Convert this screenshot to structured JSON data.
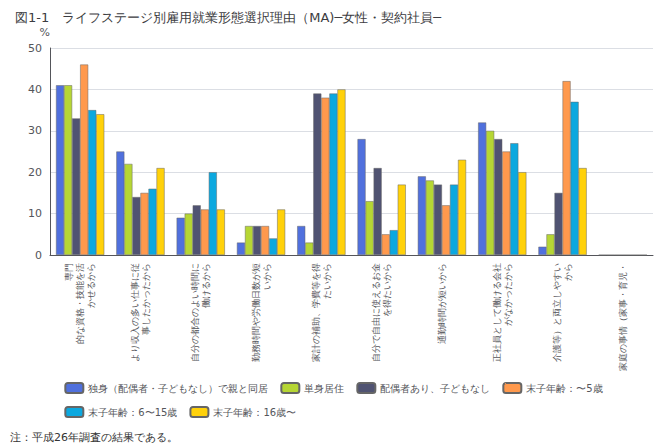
{
  "chart_data": {
    "type": "bar",
    "title": "図1-1　ライフステージ別雇用就業形態選択理由（MA)─女性・契約社員─",
    "ylabel": "%",
    "annotations": [
      "注：平成26年調査の結果である。"
    ],
    "categories": [
      "専門\n的な資格・技能を活\nかせるから",
      "より収入の多い仕事に従\n事したかったから",
      "自分の都合のよい時間に\n働けるから",
      "勤務時間や労働日数が短\nいから",
      "家計の補助、学費等を得\nたいから",
      "自分で自由に使えるお金\nを得たいから",
      "通勤時間が短いから",
      "正社員として働ける会社\nがなかったから",
      "介護等）と両立しやすい\nから",
      "家庭の事情（家事・育児・"
    ],
    "series": [
      {
        "name": "独身（配偶者・子どもなし）で親と同居",
        "values": [
          41,
          25,
          9,
          3,
          7,
          28,
          19,
          32,
          2,
          0
        ]
      },
      {
        "name": "単身居住",
        "values": [
          41,
          22,
          10,
          7,
          3,
          13,
          18,
          30,
          5,
          0
        ]
      },
      {
        "name": "配偶者あり、子どもなし",
        "values": [
          33,
          14,
          12,
          7,
          39,
          21,
          17,
          28,
          15,
          0
        ]
      },
      {
        "name": "末子年齢：〜5歳",
        "values": [
          46,
          15,
          11,
          7,
          38,
          5,
          12,
          25,
          42,
          0
        ]
      },
      {
        "name": "末子年齢：6〜15歳",
        "values": [
          35,
          16,
          20,
          4,
          39,
          6,
          17,
          27,
          37,
          0
        ]
      },
      {
        "name": "末子年齢：16歳〜",
        "values": [
          34,
          21,
          11,
          11,
          40,
          17,
          23,
          20,
          21,
          0
        ]
      }
    ],
    "ylim": [
      0,
      50
    ],
    "yticks": [
      0,
      10,
      20,
      30,
      40,
      50
    ],
    "grid": true,
    "legend": "bottom"
  }
}
